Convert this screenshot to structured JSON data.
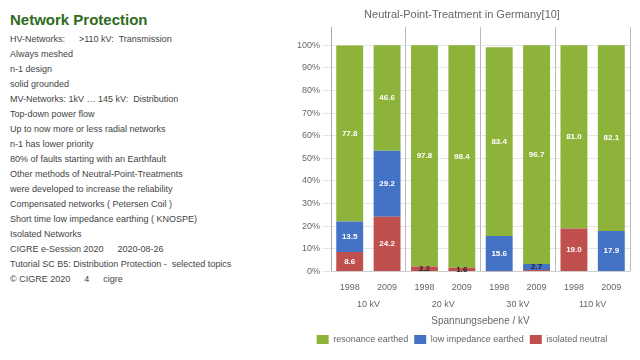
{
  "chart_data": {
    "type": "bar",
    "title": "Neutral-Point-Treatment in Germany[10]",
    "xlabel": "Spannungsebene / kV",
    "categories": [
      "1998",
      "2009",
      "1998",
      "2009",
      "1998",
      "2009",
      "1998",
      "2009"
    ],
    "groups": [
      "10 kV",
      "20 kV",
      "30 kV",
      "110 kV"
    ],
    "stacked": true,
    "series": [
      {
        "name": "isolated neutral",
        "color": "#c0504d",
        "values": [
          8.6,
          24.2,
          2.2,
          1.6,
          0.1,
          0.6,
          19.0,
          0.0
        ],
        "value_labels": [
          "8.6",
          "24.2",
          "2.2",
          "1.6",
          null,
          null,
          "19.0",
          null
        ]
      },
      {
        "name": "low impedance earthed",
        "color": "#4472c4",
        "values": [
          13.5,
          29.2,
          0.0,
          0.0,
          15.6,
          2.7,
          0.0,
          17.9
        ],
        "value_labels": [
          "13.5",
          "29.2",
          null,
          null,
          "15.6",
          "2.7",
          null,
          "17.9"
        ]
      },
      {
        "name": "resonance earthed",
        "color": "#8db33a",
        "values": [
          77.8,
          46.6,
          97.8,
          98.4,
          83.4,
          96.7,
          81.0,
          82.1
        ],
        "value_labels": [
          "77.8",
          "46.6",
          "97.8",
          "98.4",
          "83.4",
          "96.7",
          "81.0",
          "82.1"
        ]
      }
    ],
    "ylim": [
      0,
      108
    ],
    "yticks": [
      {
        "value": 0,
        "label": "0%"
      },
      {
        "value": 10,
        "label": "10%"
      },
      {
        "value": 20,
        "label": "20%"
      },
      {
        "value": 30,
        "label": "30%"
      },
      {
        "value": 40,
        "label": "40%"
      },
      {
        "value": 50,
        "label": "50%"
      },
      {
        "value": 60,
        "label": "60%"
      },
      {
        "value": 70,
        "label": "70%"
      },
      {
        "value": 80,
        "label": "80%"
      },
      {
        "value": 90,
        "label": "90%"
      },
      {
        "value": 100,
        "label": "100%"
      }
    ],
    "grid": true,
    "legend": "bottom",
    "data_labels": true,
    "annotations": [
      "Network Protection",
      [
        "HV-Networks:",
        ">110 kV:  Transmission"
      ],
      "Always meshed",
      "n-1 design",
      "solid grounded",
      "MV-Networks: 1kV … 145 kV:  Distribution",
      "Top-down power flow",
      "Up to now more or less radial networks",
      "n-1 has lower priority",
      "80% of faults starting with an Earthfault",
      "Other methods of Neutral-Point-Treatments",
      "were developed to increase the reliability",
      "Compensated networks ( Petersen Coil )",
      "Short time low impedance earthing ( KNOSPE)",
      "Isolated Networks",
      [
        "CIGRE e-Session 2020",
        "2020-08-26"
      ],
      "Tutorial SC B5: Distribution Protection -  selected topics",
      [
        "© CIGRE 2020",
        "4",
        "cigre"
      ]
    ]
  }
}
